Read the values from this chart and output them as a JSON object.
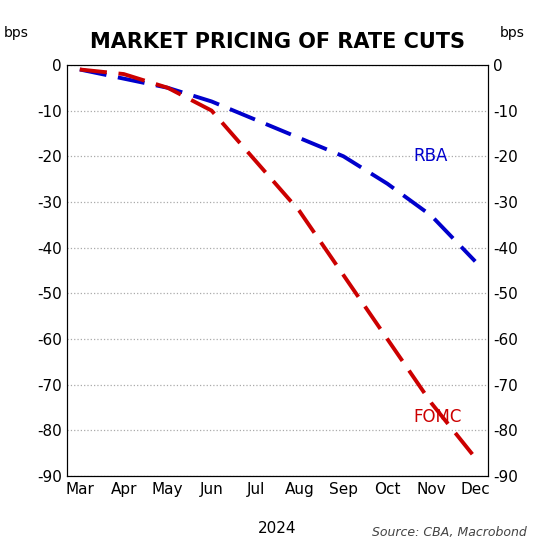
{
  "title": "MARKET PRICING OF RATE CUTS",
  "x_labels": [
    "Mar",
    "Apr",
    "May",
    "Jun",
    "Jul",
    "Aug",
    "Sep",
    "Oct",
    "Nov",
    "Dec"
  ],
  "x_label_year": "2024",
  "ylabel_left": "bps",
  "ylabel_right": "bps",
  "source": "Source: CBA, Macrobond",
  "ylim": [
    -90,
    0
  ],
  "yticks": [
    0,
    -10,
    -20,
    -30,
    -40,
    -50,
    -60,
    -70,
    -80,
    -90
  ],
  "rba_color": "#0000CC",
  "fomc_color": "#CC0000",
  "rba_label": "RBA",
  "fomc_label": "FOMC",
  "rba_values": [
    -1,
    -3,
    -5,
    -8,
    -12,
    -16,
    -20,
    -26,
    -33,
    -43
  ],
  "fomc_values": [
    -1,
    -2,
    -5,
    -10,
    -21,
    -32,
    -46,
    -60,
    -74,
    -86
  ],
  "background_color": "#ffffff",
  "grid_color": "#aaaaaa"
}
